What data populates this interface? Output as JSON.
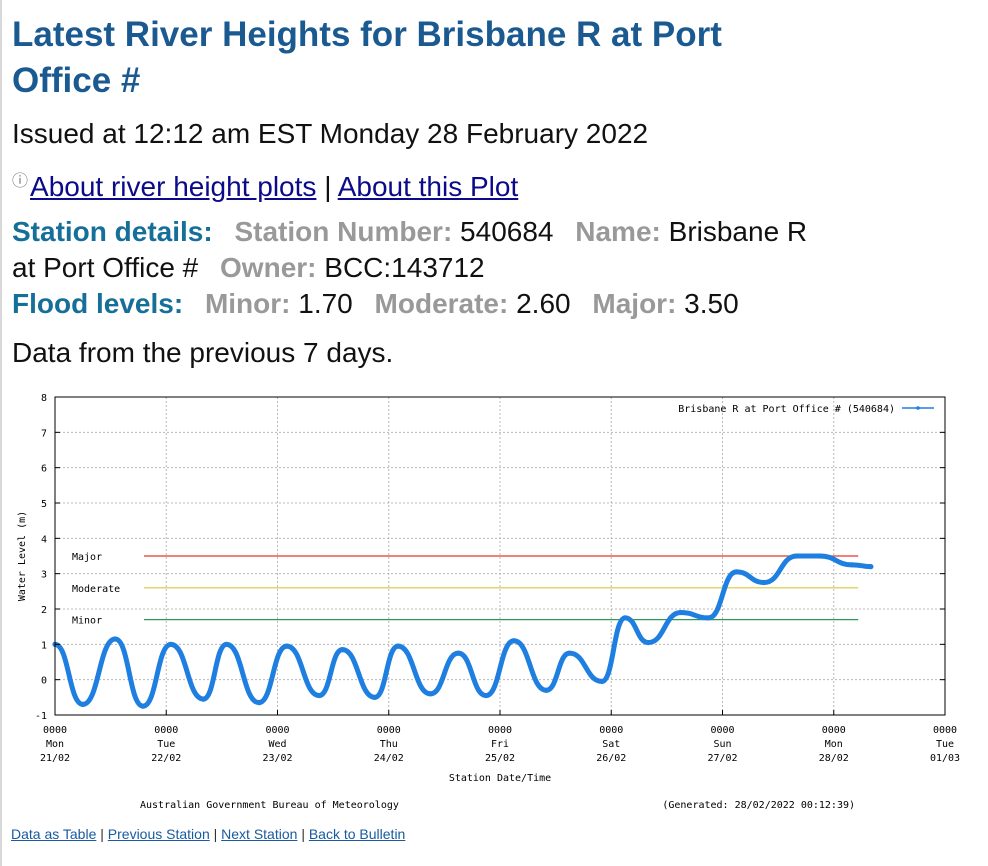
{
  "page": {
    "title": "Latest River Heights for Brisbane R at Port Office #",
    "issued": "Issued at 12:12 am EST Monday 28 February 2022",
    "info_icon": "info-icon",
    "about_river_link": "About river height plots",
    "separator": "|",
    "about_plot_link": "About this Plot",
    "data_period": "Data from the previous 7 days."
  },
  "station": {
    "heading": "Station details:",
    "number_label": "Station Number:",
    "number": "540684",
    "name_label": "Name:",
    "name": "Brisbane R at Port Office #",
    "owner_label": "Owner:",
    "owner": "BCC:143712"
  },
  "flood": {
    "heading": "Flood levels:",
    "minor_label": "Minor:",
    "minor": "1.70",
    "moderate_label": "Moderate:",
    "moderate": "2.60",
    "major_label": "Major:",
    "major": "3.50"
  },
  "chart_data": {
    "type": "line",
    "ylabel": "Water Level (m)",
    "xlabel": "Station Date/Time",
    "ylim": [
      -1,
      8
    ],
    "yticks": [
      -1,
      0,
      1,
      2,
      3,
      4,
      5,
      6,
      7,
      8
    ],
    "xlim": [
      "2022-02-21 00:00",
      "2022-03-01 00:00"
    ],
    "xticks": [
      {
        "time": "0000",
        "day": "Mon",
        "date": "21/02"
      },
      {
        "time": "0000",
        "day": "Tue",
        "date": "22/02"
      },
      {
        "time": "0000",
        "day": "Wed",
        "date": "23/02"
      },
      {
        "time": "0000",
        "day": "Thu",
        "date": "24/02"
      },
      {
        "time": "0000",
        "day": "Fri",
        "date": "25/02"
      },
      {
        "time": "0000",
        "day": "Sat",
        "date": "26/02"
      },
      {
        "time": "0000",
        "day": "Sun",
        "date": "27/02"
      },
      {
        "time": "0000",
        "day": "Mon",
        "date": "28/02"
      },
      {
        "time": "0000",
        "day": "Tue",
        "date": "01/03"
      }
    ],
    "grid": true,
    "legend_position": "top-right",
    "series": [
      {
        "name": "Brisbane R at Port Office # (540684)",
        "color": "#1f7fe0",
        "x": [
          "2022-02-21 00:00",
          "2022-02-21 06:00",
          "2022-02-21 13:00",
          "2022-02-21 19:00",
          "2022-02-22 01:00",
          "2022-02-22 08:00",
          "2022-02-22 13:00",
          "2022-02-22 20:00",
          "2022-02-23 02:00",
          "2022-02-23 09:00",
          "2022-02-23 14:00",
          "2022-02-23 21:00",
          "2022-02-24 02:00",
          "2022-02-24 09:00",
          "2022-02-24 15:00",
          "2022-02-24 21:00",
          "2022-02-25 03:00",
          "2022-02-25 10:00",
          "2022-02-25 15:00",
          "2022-02-25 22:00",
          "2022-02-26 03:00",
          "2022-02-26 08:00",
          "2022-02-26 15:00",
          "2022-02-26 21:00",
          "2022-02-27 03:00",
          "2022-02-27 09:00",
          "2022-02-27 16:00",
          "2022-02-27 21:00",
          "2022-02-28 04:00",
          "2022-02-28 08:00"
        ],
        "y": [
          1.0,
          -0.7,
          1.15,
          -0.75,
          1.0,
          -0.55,
          1.0,
          -0.65,
          0.95,
          -0.45,
          0.85,
          -0.5,
          0.95,
          -0.4,
          0.75,
          -0.45,
          1.1,
          -0.3,
          0.75,
          -0.05,
          1.75,
          1.05,
          1.9,
          1.75,
          3.05,
          2.75,
          3.5,
          3.5,
          3.25,
          3.2
        ]
      }
    ],
    "thresholds": [
      {
        "label": "Major",
        "value": 3.5,
        "color": "#e03a2a"
      },
      {
        "label": "Moderate",
        "value": 2.6,
        "color": "#d9c73a"
      },
      {
        "label": "Minor",
        "value": 1.7,
        "color": "#2e9a58"
      }
    ],
    "credit": "Australian Government Bureau of Meteorology",
    "generated": "(Generated: 28/02/2022 00:12:39)"
  },
  "footer": {
    "data_table": "Data as Table",
    "sep": "|",
    "previous_station": "Previous Station",
    "next_station": "Next Station",
    "back": "Back to Bulletin"
  }
}
